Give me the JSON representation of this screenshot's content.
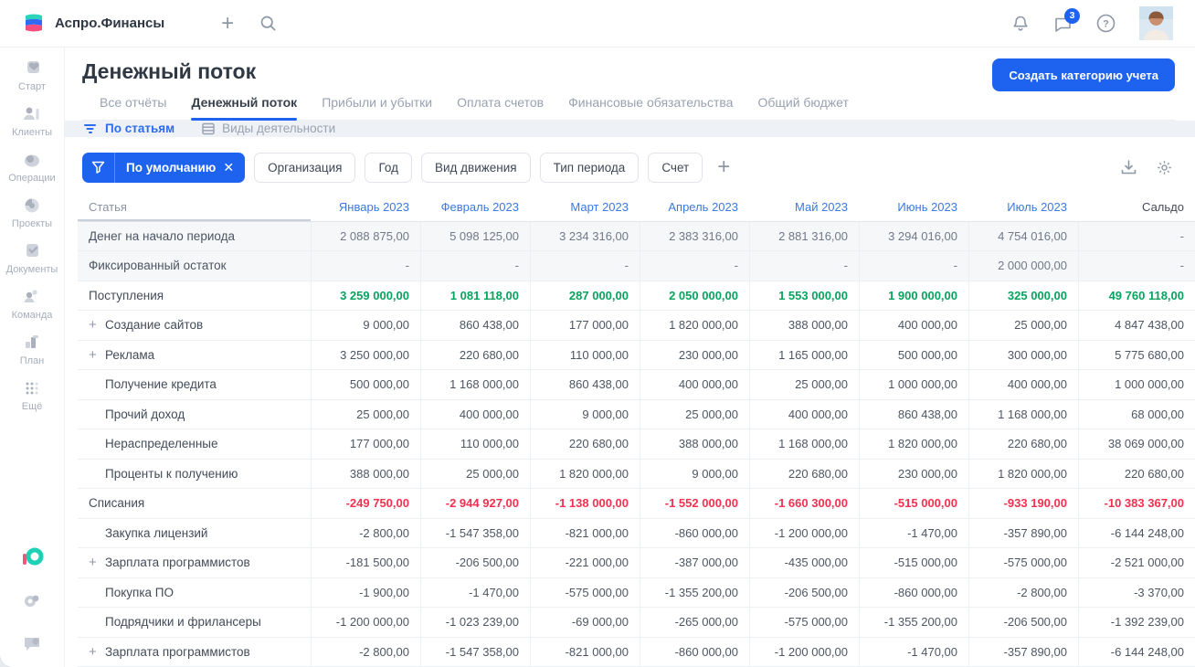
{
  "topbar": {
    "brand": "Аспро.Финансы",
    "chat_badge": "3"
  },
  "sidebar": {
    "items": [
      {
        "label": "Старт",
        "icon": "start-icon"
      },
      {
        "label": "Клиенты",
        "icon": "clients-icon"
      },
      {
        "label": "Операции",
        "icon": "operations-icon"
      },
      {
        "label": "Проекты",
        "icon": "projects-icon"
      },
      {
        "label": "Документы",
        "icon": "documents-icon"
      },
      {
        "label": "Команда",
        "icon": "team-icon"
      },
      {
        "label": "План",
        "icon": "plan-icon"
      },
      {
        "label": "Ещё",
        "icon": "more-icon"
      }
    ]
  },
  "page": {
    "title": "Денежный поток",
    "create_button": "Создать категорию учета"
  },
  "tabs": [
    {
      "label": "Все отчёты",
      "active": false
    },
    {
      "label": "Денежный поток",
      "active": true
    },
    {
      "label": "Прибыли и убытки",
      "active": false
    },
    {
      "label": "Оплата счетов",
      "active": false
    },
    {
      "label": "Финансовые обязательства",
      "active": false
    },
    {
      "label": "Общий бюджет",
      "active": false
    }
  ],
  "subtabs": {
    "by_items": "По статьям",
    "by_activity": "Виды деятельности"
  },
  "toolbar": {
    "default_filter": "По умолчанию",
    "filters": [
      "Организация",
      "Год",
      "Вид движения",
      "Тип периода",
      "Счет"
    ]
  },
  "colors": {
    "accent_blue": "#1e63f0",
    "month_blue": "#3b78e3",
    "income_green": "#0aa25f",
    "expense_red": "#f3304f"
  },
  "table": {
    "first_col": "Статья",
    "months": [
      "Январь 2023",
      "Февраль 2023",
      "Март 2023",
      "Апрель 2023",
      "Май 2023",
      "Июнь 2023",
      "Июль 2023"
    ],
    "saldo_col": "Сальдо",
    "rows": [
      {
        "label": "Денег на начало периода",
        "type": "muted",
        "level": 0,
        "expandable": false,
        "values": [
          "2 088 875,00",
          "5 098 125,00",
          "3 234 316,00",
          "2 383 316,00",
          "2 881 316,00",
          "3 294 016,00",
          "4 754 016,00"
        ],
        "saldo": "-"
      },
      {
        "label": "Фиксированный остаток",
        "type": "muted",
        "level": 0,
        "expandable": false,
        "values": [
          "-",
          "-",
          "-",
          "-",
          "-",
          "-",
          "2 000 000,00"
        ],
        "saldo": "-"
      },
      {
        "label": "Поступления",
        "type": "income",
        "level": 0,
        "expandable": false,
        "values": [
          "3 259 000,00",
          "1 081 118,00",
          "287 000,00",
          "2 050 000,00",
          "1 553 000,00",
          "1 900 000,00",
          "325 000,00"
        ],
        "saldo": "49 760 118,00"
      },
      {
        "label": "Создание сайтов",
        "type": "item",
        "level": 1,
        "expandable": true,
        "values": [
          "9 000,00",
          "860 438,00",
          "177 000,00",
          "1 820 000,00",
          "388 000,00",
          "400 000,00",
          "25 000,00"
        ],
        "saldo": "4 847 438,00"
      },
      {
        "label": "Реклама",
        "type": "item",
        "level": 1,
        "expandable": true,
        "values": [
          "3 250 000,00",
          "220 680,00",
          "110 000,00",
          "230 000,00",
          "1 165 000,00",
          "500 000,00",
          "300 000,00"
        ],
        "saldo": "5 775 680,00"
      },
      {
        "label": "Получение кредита",
        "type": "item",
        "level": 1,
        "expandable": false,
        "values": [
          "500 000,00",
          "1 168 000,00",
          "860 438,00",
          "400 000,00",
          "25 000,00",
          "1 000 000,00",
          "400 000,00"
        ],
        "saldo": "1 000 000,00"
      },
      {
        "label": "Прочий доход",
        "type": "item",
        "level": 1,
        "expandable": false,
        "values": [
          "25 000,00",
          "400 000,00",
          "9 000,00",
          "25 000,00",
          "400 000,00",
          "860 438,00",
          "1 168 000,00"
        ],
        "saldo": "68 000,00"
      },
      {
        "label": "Нераспределенные",
        "type": "item",
        "level": 1,
        "expandable": false,
        "values": [
          "177 000,00",
          "110 000,00",
          "220 680,00",
          "388 000,00",
          "1 168 000,00",
          "1 820 000,00",
          "220 680,00"
        ],
        "saldo": "38 069 000,00"
      },
      {
        "label": "Проценты к получению",
        "type": "item",
        "level": 1,
        "expandable": false,
        "values": [
          "388 000,00",
          "25 000,00",
          "1 820 000,00",
          "9 000,00",
          "220 680,00",
          "230 000,00",
          "1 820 000,00"
        ],
        "saldo": "220 680,00"
      },
      {
        "label": "Списания",
        "type": "expense",
        "level": 0,
        "expandable": false,
        "values": [
          "-249 750,00",
          "-2 944 927,00",
          "-1 138 000,00",
          "-1 552 000,00",
          "-1 660 300,00",
          "-515 000,00",
          "-933 190,00"
        ],
        "saldo": "-10 383 367,00"
      },
      {
        "label": "Закупка лицензий",
        "type": "item",
        "level": 1,
        "expandable": false,
        "values": [
          "-2 800,00",
          "-1 547 358,00",
          "-821 000,00",
          "-860 000,00",
          "-1 200 000,00",
          "-1 470,00",
          "-357 890,00"
        ],
        "saldo": "-6 144 248,00"
      },
      {
        "label": "Зарплата программистов",
        "type": "item",
        "level": 1,
        "expandable": true,
        "values": [
          "-181 500,00",
          "-206 500,00",
          "-221 000,00",
          "-387 000,00",
          "-435 000,00",
          "-515 000,00",
          "-575 000,00"
        ],
        "saldo": "-2 521 000,00"
      },
      {
        "label": "Покупка ПО",
        "type": "item",
        "level": 1,
        "expandable": false,
        "values": [
          "-1 900,00",
          "-1 470,00",
          "-575 000,00",
          "-1 355 200,00",
          "-206 500,00",
          "-860 000,00",
          "-2 800,00"
        ],
        "saldo": "-3 370,00"
      },
      {
        "label": "Подрядчики и фрилансеры",
        "type": "item",
        "level": 1,
        "expandable": false,
        "values": [
          "-1 200 000,00",
          "-1 023 239,00",
          "-69 000,00",
          "-265 000,00",
          "-575 000,00",
          "-1 355 200,00",
          "-206 500,00"
        ],
        "saldo": "-1 392 239,00"
      },
      {
        "label": "Зарплата программистов",
        "type": "item",
        "level": 1,
        "expandable": true,
        "values": [
          "-2 800,00",
          "-1 547 358,00",
          "-821 000,00",
          "-860 000,00",
          "-1 200 000,00",
          "-1 470,00",
          "-357 890,00"
        ],
        "saldo": "-6 144 248,00"
      }
    ]
  }
}
